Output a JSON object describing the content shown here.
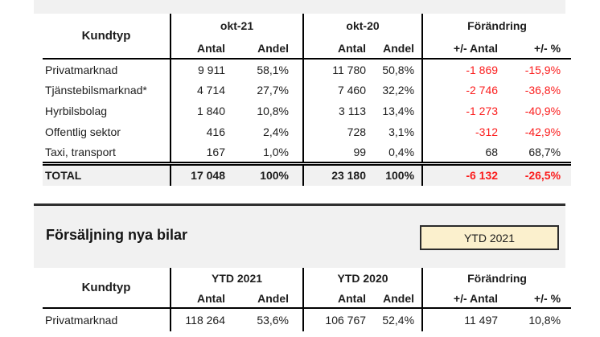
{
  "top_table": {
    "header_col": "Kundtyp",
    "groups": [
      "okt-21",
      "okt-20",
      "Förändring"
    ],
    "subheaders": [
      "Antal",
      "Andel",
      "Antal",
      "Andel",
      "+/- Antal",
      "+/- %"
    ],
    "rows": [
      {
        "name": "Privatmarknad",
        "cells": [
          "9 911",
          "58,1%",
          "11 780",
          "50,8%",
          "-1 869",
          "-15,9%"
        ]
      },
      {
        "name": "Tjänstebilsmarknad*",
        "cells": [
          "4 714",
          "27,7%",
          "7 460",
          "32,2%",
          "-2 746",
          "-36,8%"
        ]
      },
      {
        "name": "Hyrbilsbolag",
        "cells": [
          "1 840",
          "10,8%",
          "3 113",
          "13,4%",
          "-1 273",
          "-40,9%"
        ]
      },
      {
        "name": "Offentlig sektor",
        "cells": [
          "416",
          "2,4%",
          "728",
          "3,1%",
          "-312",
          "-42,9%"
        ]
      },
      {
        "name": "Taxi, transport",
        "cells": [
          "167",
          "1,0%",
          "99",
          "0,4%",
          "68",
          "68,7%"
        ]
      }
    ],
    "total": {
      "name": "TOTAL",
      "cells": [
        "17 048",
        "100%",
        "23 180",
        "100%",
        "-6 132",
        "-26,5%"
      ]
    }
  },
  "section": {
    "title": "Försäljning nya bilar",
    "badge_label": "YTD 2021"
  },
  "bottom_table": {
    "header_col": "Kundtyp",
    "groups": [
      "YTD 2021",
      "YTD 2020",
      "Förändring"
    ],
    "subheaders": [
      "Antal",
      "Andel",
      "Antal",
      "Andel",
      "+/- Antal",
      "+/- %"
    ],
    "rows": [
      {
        "name": "Privatmarknad",
        "cells": [
          "118 264",
          "53,6%",
          "106 767",
          "52,4%",
          "11 497",
          "10,8%"
        ]
      }
    ]
  },
  "colors": {
    "negative_red": "#fb1d1d",
    "band_gray": "#f1f1f1",
    "total_row_gray": "#f1f1f1",
    "badge_fill": "#fbf0cd",
    "badge_border": "#2b2b2b",
    "table_rule_black": "#000000"
  }
}
